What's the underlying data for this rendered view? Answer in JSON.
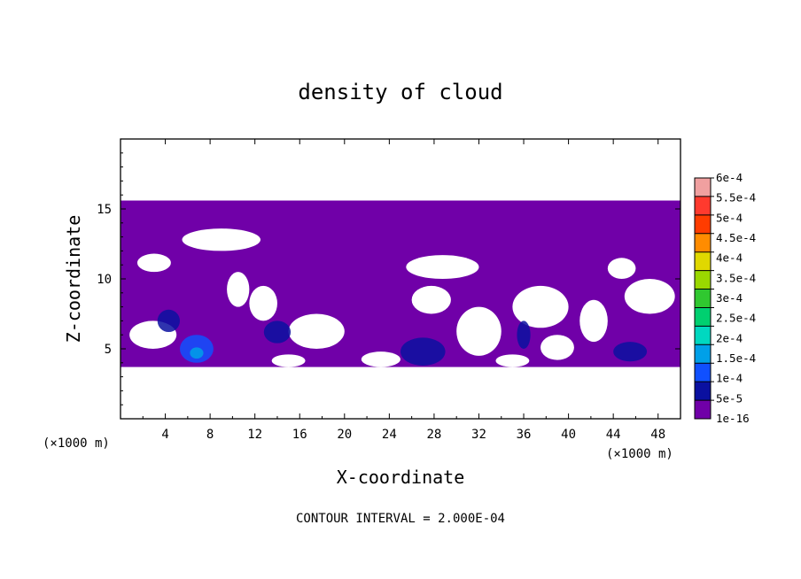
{
  "chart_data": {
    "type": "heatmap",
    "title": "density of cloud",
    "xlabel": "X-coordinate",
    "ylabel": "Z-coordinate",
    "x_unit_left": "(×1000 m)",
    "x_unit_right": "(×1000 m)",
    "xlim": [
      0,
      50
    ],
    "ylim": [
      0,
      20
    ],
    "x_ticks": [
      {
        "v": 4,
        "label": "4"
      },
      {
        "v": 8,
        "label": "8"
      },
      {
        "v": 12,
        "label": "12"
      },
      {
        "v": 16,
        "label": "16"
      },
      {
        "v": 20,
        "label": "20"
      },
      {
        "v": 24,
        "label": "24"
      },
      {
        "v": 28,
        "label": "28"
      },
      {
        "v": 32,
        "label": "32"
      },
      {
        "v": 36,
        "label": "36"
      },
      {
        "v": 40,
        "label": "40"
      },
      {
        "v": 44,
        "label": "44"
      },
      {
        "v": 48,
        "label": "48"
      }
    ],
    "y_ticks": [
      {
        "v": 5,
        "label": "5"
      },
      {
        "v": 10,
        "label": "10"
      },
      {
        "v": 15,
        "label": "15"
      }
    ],
    "footer": "CONTOUR INTERVAL = 2.000E-04",
    "colorbar": {
      "labels": [
        "6e-4",
        "5.5e-4",
        "5e-4",
        "4.5e-4",
        "4e-4",
        "3.5e-4",
        "3e-4",
        "2.5e-4",
        "2e-4",
        "1.5e-4",
        "1e-4",
        "5e-5",
        "1e-16"
      ],
      "colors": [
        "#f0a0a0",
        "#ff3a2e",
        "#ff3c00",
        "#ff8c00",
        "#e0d800",
        "#9ad800",
        "#30c830",
        "#00d070",
        "#00d8c0",
        "#00a0e8",
        "#1050ff",
        "#0a10a0",
        "#7000a8"
      ]
    },
    "cloud_region": {
      "base_color": "#7000a8",
      "z_range": [
        3.7,
        15.6
      ],
      "x_range": [
        0,
        50
      ],
      "clear_pockets": [
        {
          "x": [
            5.5,
            12.5
          ],
          "z": [
            12.0,
            13.6
          ]
        },
        {
          "x": [
            1.5,
            4.5
          ],
          "z": [
            10.5,
            11.8
          ]
        },
        {
          "x": [
            9.5,
            11.5
          ],
          "z": [
            8.0,
            10.5
          ]
        },
        {
          "x": [
            11.5,
            14.0
          ],
          "z": [
            7.0,
            9.5
          ]
        },
        {
          "x": [
            15.0,
            20.0
          ],
          "z": [
            5.0,
            7.5
          ]
        },
        {
          "x": [
            0.8,
            5.0
          ],
          "z": [
            5.0,
            7.0
          ]
        },
        {
          "x": [
            25.5,
            32.0
          ],
          "z": [
            10.0,
            11.7
          ]
        },
        {
          "x": [
            26.0,
            29.5
          ],
          "z": [
            7.5,
            9.5
          ]
        },
        {
          "x": [
            30.0,
            34.0
          ],
          "z": [
            4.5,
            8.0
          ]
        },
        {
          "x": [
            35.0,
            40.0
          ],
          "z": [
            6.5,
            9.5
          ]
        },
        {
          "x": [
            37.5,
            40.5
          ],
          "z": [
            4.2,
            6.0
          ]
        },
        {
          "x": [
            43.5,
            46.0
          ],
          "z": [
            10.0,
            11.5
          ]
        },
        {
          "x": [
            45.0,
            49.5
          ],
          "z": [
            7.5,
            10.0
          ]
        },
        {
          "x": [
            41.0,
            43.5
          ],
          "z": [
            5.5,
            8.5
          ]
        },
        {
          "x": [
            13.5,
            16.5
          ],
          "z": [
            3.7,
            4.6
          ]
        },
        {
          "x": [
            21.5,
            25.0
          ],
          "z": [
            3.7,
            4.8
          ]
        },
        {
          "x": [
            33.5,
            36.5
          ],
          "z": [
            3.7,
            4.6
          ]
        }
      ],
      "dense_blobs": [
        {
          "x": 6.8,
          "z": 5.0,
          "rx": 1.5,
          "rz": 1.0,
          "level": "1e-4"
        },
        {
          "x": 6.8,
          "z": 4.7,
          "rx": 0.6,
          "rz": 0.4,
          "level": "1.5e-4"
        },
        {
          "x": 4.3,
          "z": 7.0,
          "rx": 1.0,
          "rz": 0.8,
          "level": "5e-5"
        },
        {
          "x": 14.0,
          "z": 6.2,
          "rx": 1.2,
          "rz": 0.8,
          "level": "5e-5"
        },
        {
          "x": 27.0,
          "z": 4.8,
          "rx": 2.0,
          "rz": 1.0,
          "level": "5e-5"
        },
        {
          "x": 45.5,
          "z": 4.8,
          "rx": 1.5,
          "rz": 0.7,
          "level": "5e-5"
        },
        {
          "x": 36.0,
          "z": 6.0,
          "rx": 0.6,
          "rz": 1.0,
          "level": "5e-5"
        }
      ]
    }
  }
}
